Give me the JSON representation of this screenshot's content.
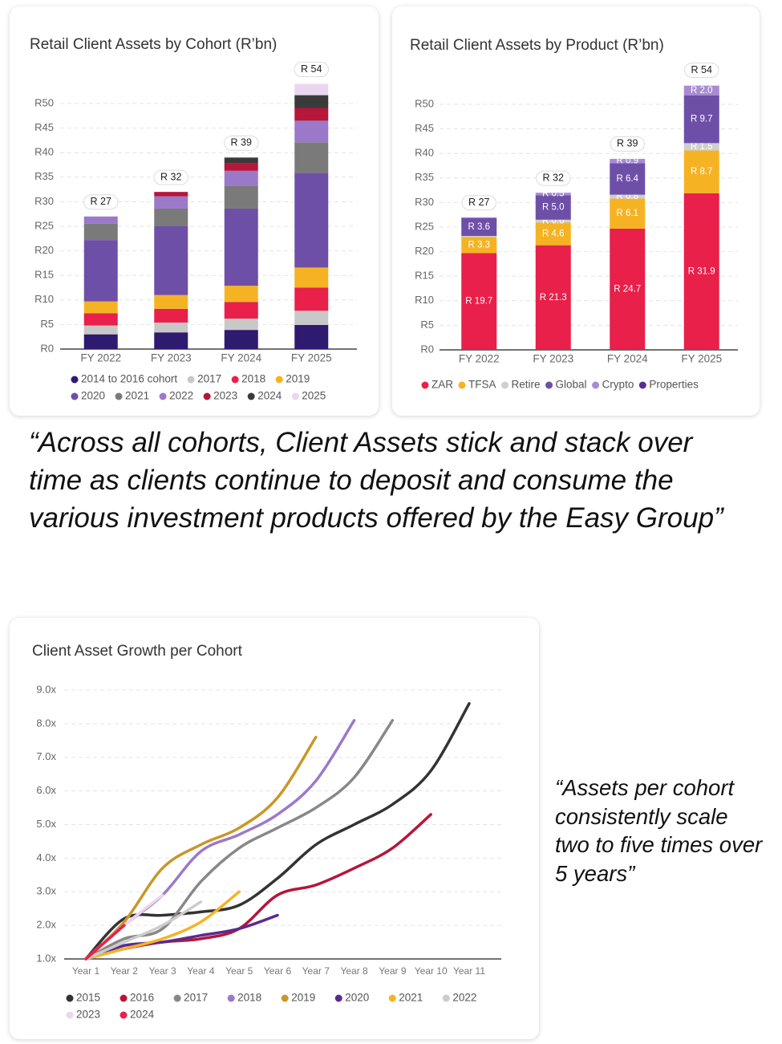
{
  "chart_data": [
    {
      "type": "bar",
      "title": "Retail Client Assets by Cohort (R’bn)",
      "categories": [
        "FY 2022",
        "FY 2023",
        "FY 2024",
        "FY 2025"
      ],
      "series": [
        {
          "name": "2014 to 2016 cohort",
          "color": "#2e1a6e",
          "values": [
            3,
            3.4,
            3.9,
            4.9
          ]
        },
        {
          "name": "2017",
          "color": "#c8c8c8",
          "values": [
            1.8,
            2,
            2.3,
            2.9
          ]
        },
        {
          "name": "2018",
          "color": "#e8204a",
          "values": [
            2.5,
            2.8,
            3.4,
            4.7
          ]
        },
        {
          "name": "2019",
          "color": "#f5b324",
          "values": [
            2.4,
            2.8,
            3.3,
            4.1
          ]
        },
        {
          "name": "2020",
          "color": "#6e4fa8",
          "values": [
            12.5,
            14,
            15.7,
            19.3
          ]
        },
        {
          "name": "2021",
          "color": "#7a7a7a",
          "values": [
            3.3,
            3.6,
            4.7,
            6.2
          ]
        },
        {
          "name": "2022",
          "color": "#9b79c9",
          "values": [
            1.5,
            2.5,
            3,
            4.4
          ]
        },
        {
          "name": "2023",
          "color": "#b5163a",
          "values": [
            0,
            0.9,
            1.6,
            2.6
          ]
        },
        {
          "name": "2024",
          "color": "#3a3a3a",
          "values": [
            0,
            0,
            1.1,
            2.6
          ]
        },
        {
          "name": "2025",
          "color": "#ead7ef",
          "values": [
            0,
            0,
            0,
            2.3
          ]
        }
      ],
      "totals": [
        27,
        32,
        39,
        54
      ],
      "total_labels": [
        "R 27",
        "R 32",
        "R 39",
        "R 54"
      ],
      "ylim": [
        0,
        50
      ],
      "yticks": [
        {
          "value": 0,
          "label": "R0"
        },
        {
          "value": 5,
          "label": "R5"
        },
        {
          "value": 10,
          "label": "R10"
        },
        {
          "value": 15,
          "label": "R15"
        },
        {
          "value": 20,
          "label": "R20"
        },
        {
          "value": 25,
          "label": "R25"
        },
        {
          "value": 30,
          "label": "R30"
        },
        {
          "value": 35,
          "label": "R35"
        },
        {
          "value": 40,
          "label": "R40"
        },
        {
          "value": 45,
          "label": "R45"
        },
        {
          "value": 50,
          "label": "R50"
        }
      ],
      "grid": true
    },
    {
      "type": "bar",
      "title": "Retail Client Assets by Product (R’bn)",
      "categories": [
        "FY 2022",
        "FY 2023",
        "FY 2024",
        "FY 2025"
      ],
      "series": [
        {
          "name": "ZAR",
          "color": "#e8204a",
          "values": [
            19.7,
            21.3,
            24.7,
            31.9
          ],
          "value_labels": [
            "R 19.7",
            "R 21.3",
            "R 24.7",
            "R 31.9"
          ]
        },
        {
          "name": "TFSA",
          "color": "#f5b324",
          "values": [
            3.3,
            4.6,
            6.1,
            8.7
          ],
          "value_labels": [
            "R 3.3",
            "R 4.6",
            "R 6.1",
            "R 8.7"
          ]
        },
        {
          "name": "Retire",
          "color": "#cfcfcf",
          "values": [
            0.2,
            0.6,
            0.8,
            1.5
          ],
          "value_labels": [
            null,
            "R 0.6",
            "R 0.8",
            "R 1.5"
          ]
        },
        {
          "name": "Global",
          "color": "#6e4fa8",
          "values": [
            3.6,
            5.0,
            6.4,
            9.7
          ],
          "value_labels": [
            "R 3.6",
            "R 5.0",
            "R 6.4",
            "R 9.7"
          ]
        },
        {
          "name": "Crypto",
          "color": "#a98bd4",
          "values": [
            0.2,
            0.5,
            0.9,
            2.0
          ],
          "value_labels": [
            null,
            "R 0.5",
            "R 0.9",
            "R 2.0"
          ]
        },
        {
          "name": "Properties",
          "color": "#5b2a91",
          "values": [
            0,
            0,
            0,
            0
          ],
          "value_labels": [
            null,
            null,
            null,
            null
          ]
        }
      ],
      "totals": [
        27,
        32,
        39,
        54
      ],
      "total_labels": [
        "R 27",
        "R 32",
        "R 39",
        "R 54"
      ],
      "ylim": [
        0,
        50
      ],
      "yticks": [
        {
          "value": 0,
          "label": "R0"
        },
        {
          "value": 5,
          "label": "R5"
        },
        {
          "value": 10,
          "label": "R10"
        },
        {
          "value": 15,
          "label": "R15"
        },
        {
          "value": 20,
          "label": "R20"
        },
        {
          "value": 25,
          "label": "R25"
        },
        {
          "value": 30,
          "label": "R30"
        },
        {
          "value": 35,
          "label": "R35"
        },
        {
          "value": 40,
          "label": "R40"
        },
        {
          "value": 45,
          "label": "R45"
        },
        {
          "value": 50,
          "label": "R50"
        }
      ],
      "grid": true
    },
    {
      "type": "line",
      "title": "Client Asset Growth per Cohort",
      "categories": [
        "Year 1",
        "Year 2",
        "Year 3",
        "Year 4",
        "Year 5",
        "Year 6",
        "Year 7",
        "Year 8",
        "Year 9",
        "Year 10",
        "Year 11"
      ],
      "series": [
        {
          "name": "2015",
          "color": "#333333",
          "values": [
            1.0,
            2.2,
            2.3,
            2.4,
            2.6,
            3.4,
            4.4,
            5.0,
            5.6,
            6.6,
            8.6
          ]
        },
        {
          "name": "2016",
          "color": "#b5163a",
          "values": [
            1.0,
            1.3,
            1.5,
            1.6,
            1.9,
            2.9,
            3.2,
            3.7,
            4.3,
            5.3,
            null
          ]
        },
        {
          "name": "2017",
          "color": "#888888",
          "values": [
            1.0,
            1.6,
            1.9,
            3.3,
            4.3,
            4.9,
            5.5,
            6.4,
            8.1,
            null,
            null
          ]
        },
        {
          "name": "2018",
          "color": "#9b79c9",
          "values": [
            1.0,
            2.0,
            2.9,
            4.2,
            4.7,
            5.3,
            6.3,
            8.1,
            null,
            null,
            null
          ]
        },
        {
          "name": "2019",
          "color": "#c9962a",
          "values": [
            1.0,
            2.1,
            3.7,
            4.4,
            4.9,
            5.8,
            7.6,
            null,
            null,
            null,
            null
          ]
        },
        {
          "name": "2020",
          "color": "#5b2a91",
          "values": [
            1.0,
            1.4,
            1.5,
            1.7,
            1.9,
            2.3,
            null,
            null,
            null,
            null,
            null
          ]
        },
        {
          "name": "2021",
          "color": "#f5b324",
          "values": [
            1.0,
            1.3,
            1.6,
            2.1,
            3.0,
            null,
            null,
            null,
            null,
            null,
            null
          ]
        },
        {
          "name": "2022",
          "color": "#cccccc",
          "values": [
            1.0,
            1.5,
            2.0,
            2.7,
            null,
            null,
            null,
            null,
            null,
            null,
            null
          ]
        },
        {
          "name": "2023",
          "color": "#ead7ef",
          "values": [
            1.0,
            2.0,
            2.9,
            null,
            null,
            null,
            null,
            null,
            null,
            null,
            null
          ]
        },
        {
          "name": "2024",
          "color": "#e8204a",
          "values": [
            1.0,
            2.0,
            null,
            null,
            null,
            null,
            null,
            null,
            null,
            null,
            null
          ]
        }
      ],
      "ylim": [
        1,
        9
      ],
      "yticks": [
        {
          "value": 1,
          "label": "1.0x"
        },
        {
          "value": 2,
          "label": "2.0x"
        },
        {
          "value": 3,
          "label": "3.0x"
        },
        {
          "value": 4,
          "label": "4.0x"
        },
        {
          "value": 5,
          "label": "5.0x"
        },
        {
          "value": 6,
          "label": "6.0x"
        },
        {
          "value": 7,
          "label": "7.0x"
        },
        {
          "value": 8,
          "label": "8.0x"
        },
        {
          "value": 9,
          "label": "9.0x"
        }
      ],
      "grid": true
    }
  ],
  "quote_main": "“Across all cohorts, Client Assets stick and stack over time as clients continue to deposit and consume the various investment products offered by the Easy Group”",
  "quote_side": "“Assets per cohort consistently scale two to five times over 5 years”"
}
